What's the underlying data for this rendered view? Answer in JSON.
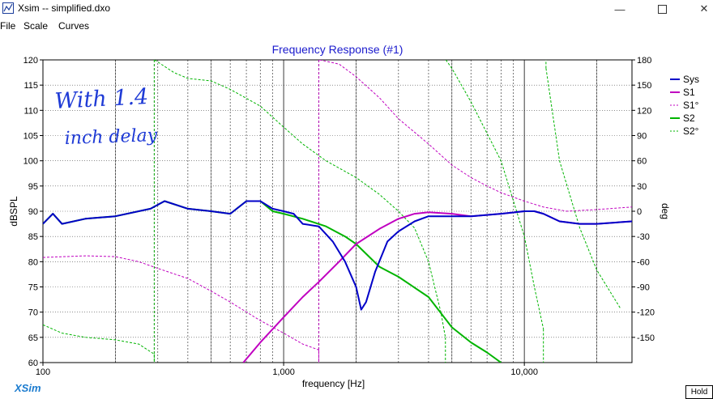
{
  "window": {
    "title": "Xsim -- simplified.dxo",
    "controls": [
      "minimize-icon",
      "maximize-icon",
      "close-icon"
    ]
  },
  "menu": {
    "items": [
      "File",
      "Scale",
      "Curves"
    ]
  },
  "brand": "XSim",
  "hold_button": "Hold",
  "annotation_lines": [
    "With 1.4",
    "inch delay"
  ],
  "colors": {
    "sys": "#0000c8",
    "s1": "#c000c0",
    "s2": "#00b400",
    "title": "#1a1acd",
    "grid": "#000000",
    "marker": "#b000b0"
  },
  "chart_data": {
    "type": "line",
    "title": "Frequency Response (#1)",
    "xlabel": "frequency [Hz]",
    "ylabel": "dBSPL",
    "y2label": "deg",
    "x_scale": "log",
    "xlim": [
      100,
      28000
    ],
    "ylim": [
      60,
      120
    ],
    "y2lim": [
      -180,
      180
    ],
    "x_tick_labels": [
      {
        "v": 100,
        "t": "100"
      },
      {
        "v": 1000,
        "t": "1,000"
      },
      {
        "v": 10000,
        "t": "10,000"
      }
    ],
    "y_ticks": [
      60,
      65,
      70,
      75,
      80,
      85,
      90,
      95,
      100,
      105,
      110,
      115,
      120
    ],
    "y2_ticks": [
      -150,
      -120,
      -90,
      -60,
      -30,
      0,
      30,
      60,
      90,
      120,
      150,
      180
    ],
    "grid": true,
    "legend_position": "right",
    "legend": [
      {
        "name": "Sys",
        "color": "#0000c8",
        "style": "solid"
      },
      {
        "name": "S1",
        "color": "#c000c0",
        "style": "solid"
      },
      {
        "name": "S1°",
        "color": "#c000c0",
        "style": "dashed"
      },
      {
        "name": "S2",
        "color": "#00b400",
        "style": "solid"
      },
      {
        "name": "S2°",
        "color": "#00b400",
        "style": "dashed"
      }
    ],
    "markers": [
      {
        "freq": 290,
        "color": "#00a000"
      },
      {
        "freq": 1400,
        "color": "#b000b0"
      }
    ],
    "series": [
      {
        "name": "Sys",
        "axis": "left",
        "style": "solid",
        "width": 2,
        "points": [
          [
            100,
            87.5
          ],
          [
            110,
            89.5
          ],
          [
            120,
            87.5
          ],
          [
            150,
            88.5
          ],
          [
            200,
            89
          ],
          [
            280,
            90.5
          ],
          [
            320,
            92
          ],
          [
            400,
            90.5
          ],
          [
            500,
            90
          ],
          [
            600,
            89.5
          ],
          [
            700,
            92
          ],
          [
            800,
            92
          ],
          [
            900,
            90.5
          ],
          [
            1000,
            90
          ],
          [
            1100,
            89.5
          ],
          [
            1200,
            87.5
          ],
          [
            1400,
            87
          ],
          [
            1600,
            84
          ],
          [
            1800,
            80
          ],
          [
            2000,
            75
          ],
          [
            2100,
            70.5
          ],
          [
            2200,
            72
          ],
          [
            2400,
            78
          ],
          [
            2700,
            84
          ],
          [
            3000,
            86
          ],
          [
            3500,
            88
          ],
          [
            4000,
            89
          ],
          [
            5000,
            89
          ],
          [
            6000,
            89
          ],
          [
            8000,
            89.5
          ],
          [
            10000,
            90
          ],
          [
            11000,
            90
          ],
          [
            12000,
            89.5
          ],
          [
            14000,
            88
          ],
          [
            17000,
            87.5
          ],
          [
            20000,
            87.5
          ],
          [
            28000,
            88
          ]
        ]
      },
      {
        "name": "S1",
        "axis": "left",
        "style": "solid",
        "width": 2,
        "points": [
          [
            680,
            60
          ],
          [
            800,
            64
          ],
          [
            1000,
            69
          ],
          [
            1200,
            73
          ],
          [
            1400,
            76
          ],
          [
            1700,
            80
          ],
          [
            2000,
            83.5
          ],
          [
            2500,
            86.5
          ],
          [
            3000,
            88.5
          ],
          [
            3500,
            89.5
          ],
          [
            4000,
            89.8
          ],
          [
            5000,
            89.5
          ],
          [
            6000,
            89
          ],
          [
            8000,
            89.5
          ],
          [
            10000,
            90
          ],
          [
            11000,
            90
          ],
          [
            12000,
            89.5
          ],
          [
            14000,
            88
          ],
          [
            17000,
            87.5
          ],
          [
            20000,
            87.5
          ],
          [
            28000,
            88
          ]
        ]
      },
      {
        "name": "S1°",
        "axis": "right",
        "style": "dashed",
        "width": 1,
        "points": [
          [
            100,
            -55
          ],
          [
            150,
            -53
          ],
          [
            200,
            -54
          ],
          [
            250,
            -60
          ],
          [
            300,
            -68
          ],
          [
            400,
            -80
          ],
          [
            500,
            -95
          ],
          [
            600,
            -108
          ],
          [
            800,
            -130
          ],
          [
            1000,
            -145
          ],
          [
            1200,
            -158
          ],
          [
            1400,
            -165
          ],
          [
            1410,
            180
          ],
          [
            1700,
            175
          ],
          [
            2000,
            160
          ],
          [
            2500,
            135
          ],
          [
            3000,
            110
          ],
          [
            4000,
            80
          ],
          [
            5000,
            55
          ],
          [
            6000,
            40
          ],
          [
            7000,
            30
          ],
          [
            8000,
            22
          ],
          [
            10000,
            12
          ],
          [
            12000,
            5
          ],
          [
            15000,
            0
          ],
          [
            20000,
            2
          ],
          [
            28000,
            5
          ]
        ]
      },
      {
        "name": "S2",
        "axis": "left",
        "style": "solid",
        "width": 2,
        "points": [
          [
            100,
            87.5
          ],
          [
            110,
            89.5
          ],
          [
            120,
            87.5
          ],
          [
            150,
            88.5
          ],
          [
            200,
            89
          ],
          [
            280,
            90.5
          ],
          [
            320,
            92
          ],
          [
            400,
            90.5
          ],
          [
            500,
            90
          ],
          [
            600,
            89.5
          ],
          [
            700,
            92
          ],
          [
            800,
            92
          ],
          [
            900,
            90
          ],
          [
            1000,
            89.5
          ],
          [
            1200,
            88.5
          ],
          [
            1500,
            87
          ],
          [
            1800,
            85
          ],
          [
            2000,
            83.5
          ],
          [
            2500,
            79
          ],
          [
            3000,
            77
          ],
          [
            4000,
            73
          ],
          [
            5000,
            67
          ],
          [
            6000,
            64
          ],
          [
            7000,
            62
          ],
          [
            8000,
            60
          ]
        ]
      },
      {
        "name": "S2°",
        "axis": "right",
        "style": "dashed",
        "width": 1,
        "points": [
          [
            100,
            -135
          ],
          [
            120,
            -145
          ],
          [
            150,
            -150
          ],
          [
            200,
            -153
          ],
          [
            250,
            -158
          ],
          [
            290,
            -170
          ],
          [
            291,
            180
          ],
          [
            350,
            165
          ],
          [
            400,
            158
          ],
          [
            500,
            155
          ],
          [
            600,
            145
          ],
          [
            800,
            125
          ],
          [
            1000,
            100
          ],
          [
            1200,
            80
          ],
          [
            1500,
            60
          ],
          [
            2000,
            40
          ],
          [
            2500,
            20
          ],
          [
            3000,
            0
          ],
          [
            3500,
            -20
          ],
          [
            4000,
            -60
          ],
          [
            4500,
            -120
          ],
          [
            4700,
            -150
          ],
          [
            4720,
            180
          ],
          [
            5000,
            170
          ],
          [
            6000,
            130
          ],
          [
            8000,
            60
          ],
          [
            10000,
            -30
          ],
          [
            11000,
            -90
          ],
          [
            12000,
            -140
          ],
          [
            12300,
            170
          ],
          [
            14000,
            60
          ],
          [
            17000,
            -20
          ],
          [
            20000,
            -70
          ],
          [
            25000,
            -115
          ]
        ]
      }
    ]
  }
}
